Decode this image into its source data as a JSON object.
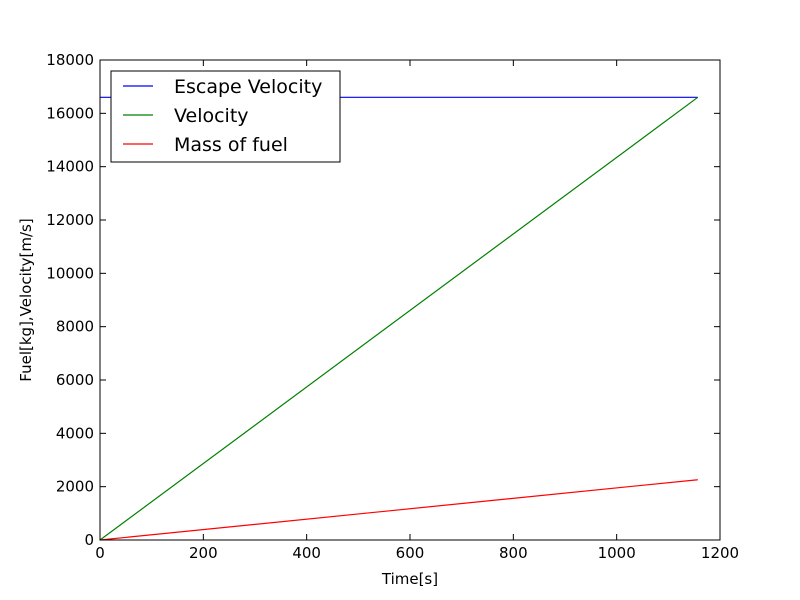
{
  "chart_data": {
    "type": "line",
    "title": "",
    "xlabel": "Time[s]",
    "ylabel": "Fuel[kg],Velocity[m/s]",
    "xlim": [
      0,
      1200
    ],
    "ylim": [
      0,
      18000
    ],
    "xticks": [
      0,
      200,
      400,
      600,
      800,
      1000,
      1200
    ],
    "yticks": [
      0,
      2000,
      4000,
      6000,
      8000,
      10000,
      12000,
      14000,
      16000,
      18000
    ],
    "xtick_labels": [
      "0",
      "200",
      "400",
      "600",
      "800",
      "1000",
      "1200"
    ],
    "ytick_labels": [
      "0",
      "2000",
      "4000",
      "6000",
      "8000",
      "10000",
      "12000",
      "14000",
      "16000",
      "18000"
    ],
    "grid": false,
    "legend_position": "top-left",
    "series": [
      {
        "name": "Escape Velocity",
        "color": "#0000ff",
        "x": [
          0,
          1157
        ],
        "y": [
          16600,
          16600
        ]
      },
      {
        "name": "Velocity",
        "color": "#008000",
        "x": [
          0,
          1157
        ],
        "y": [
          0,
          16600
        ]
      },
      {
        "name": "Mass of fuel",
        "color": "#ff0000",
        "x": [
          0,
          1157
        ],
        "y": [
          0,
          2260
        ]
      }
    ]
  }
}
